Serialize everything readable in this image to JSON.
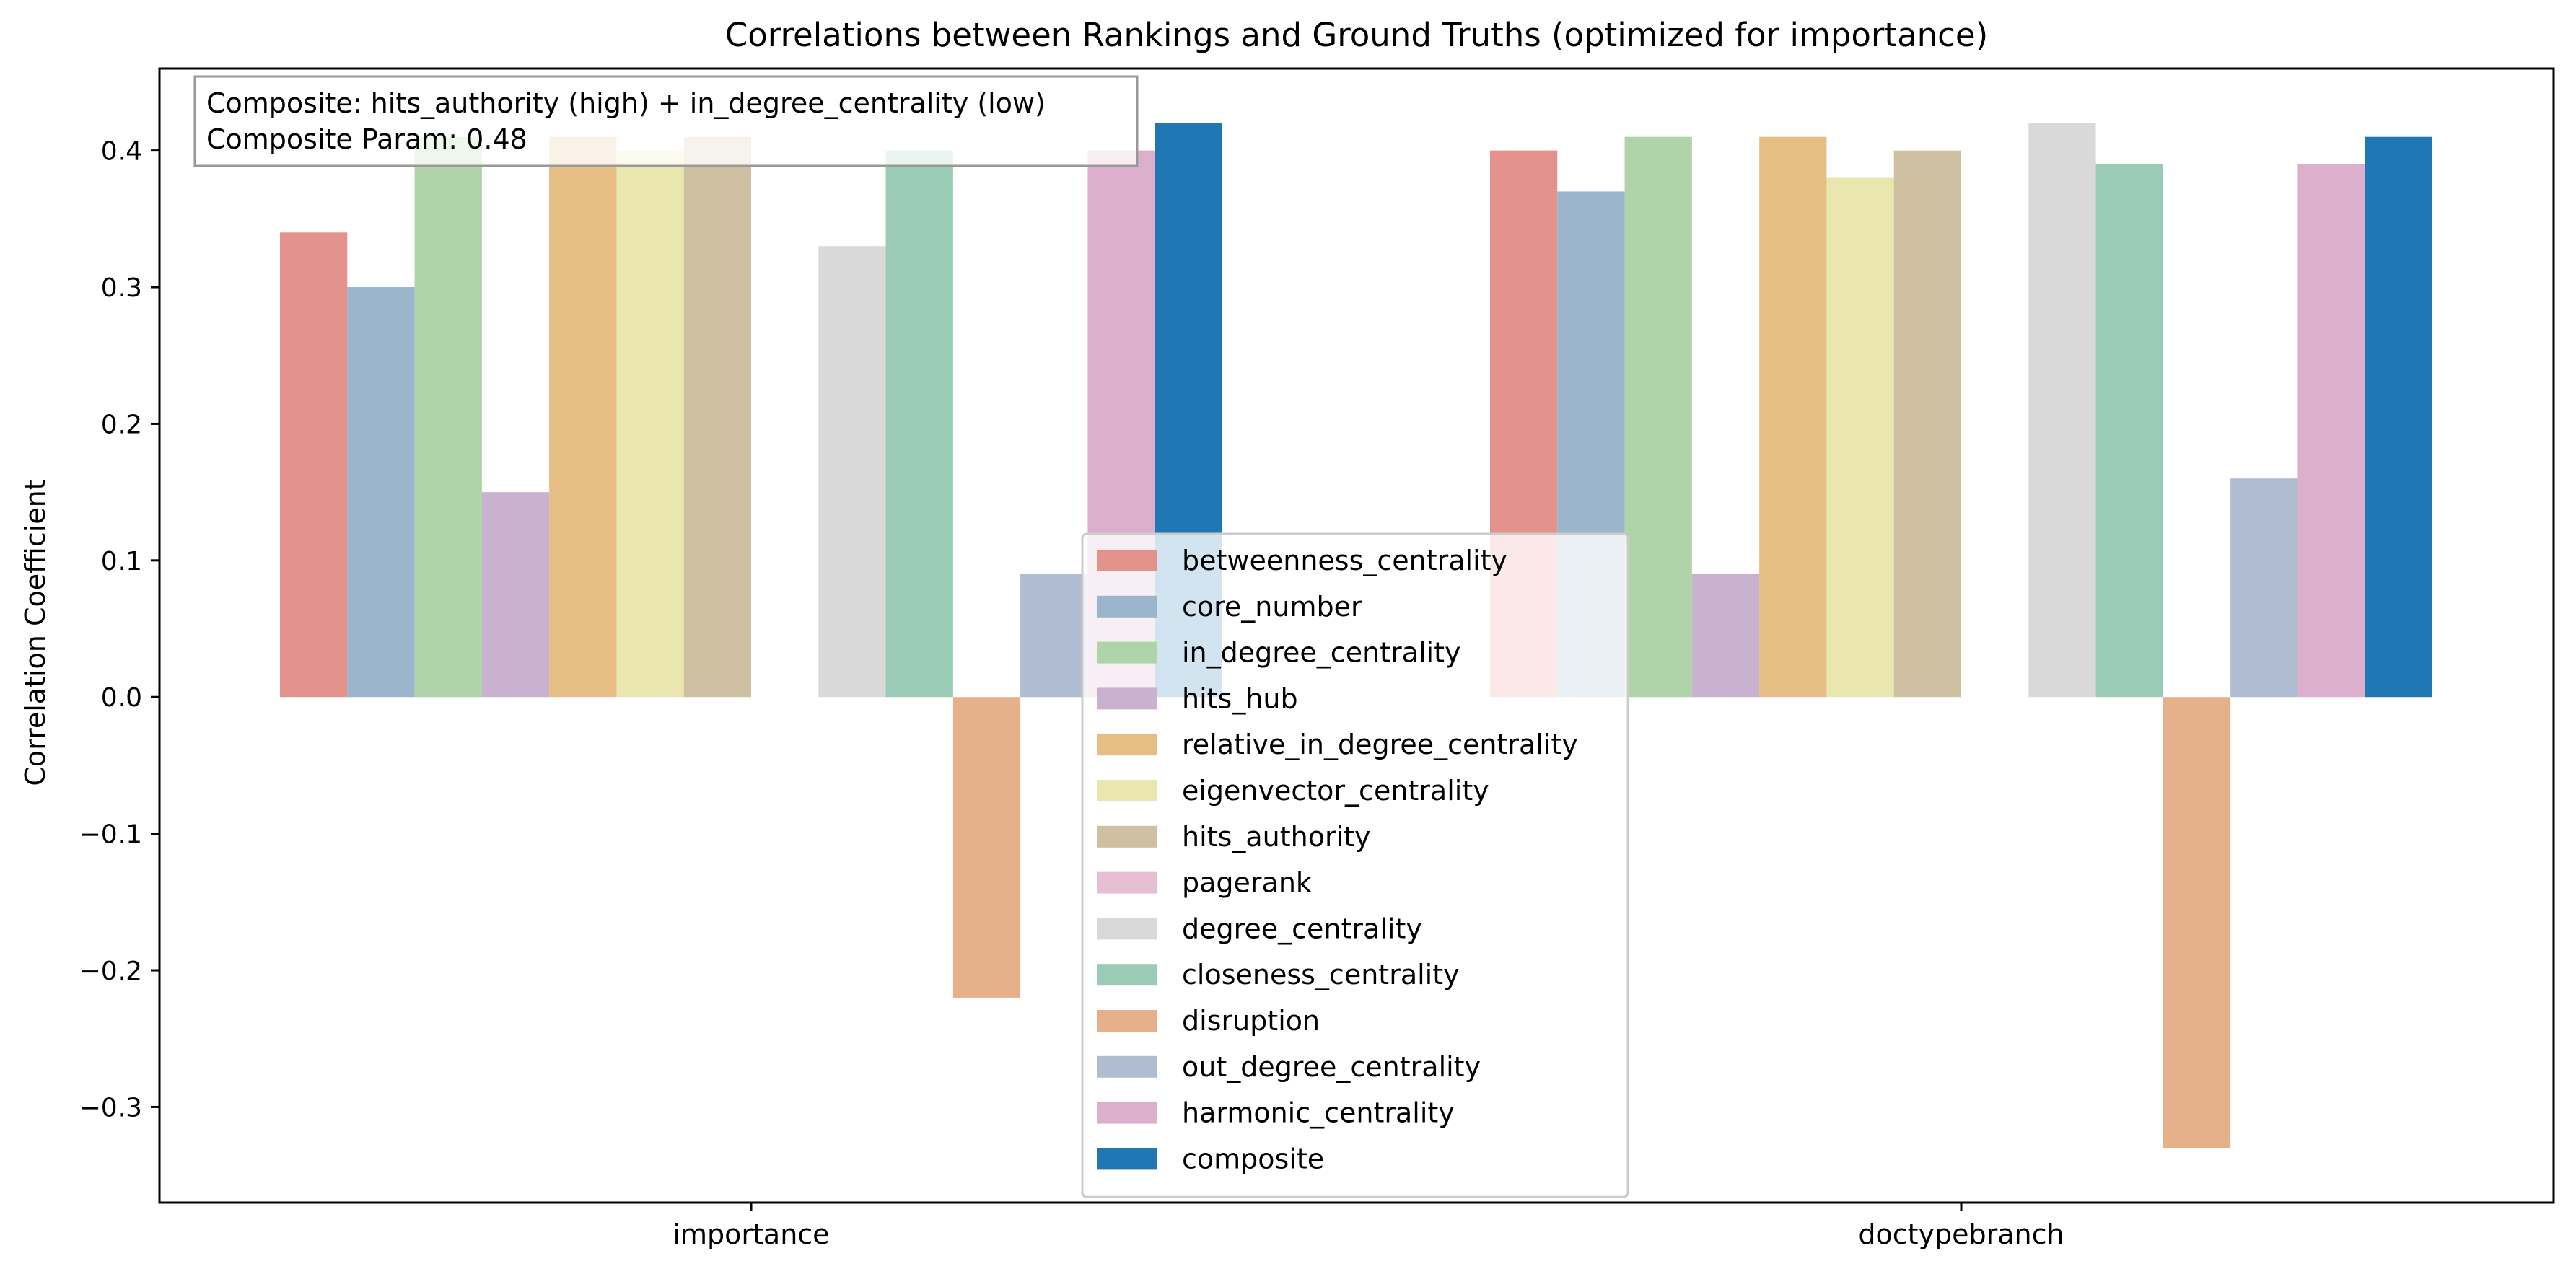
{
  "chart_data": {
    "type": "bar",
    "title": "Correlations between Rankings and Ground Truths (optimized for importance)",
    "xlabel": "",
    "ylabel": "Correlation Coefficient",
    "categories": [
      "importance",
      "doctypebranch"
    ],
    "ylim": [
      -0.37,
      0.46
    ],
    "yticks": [
      -0.3,
      -0.2,
      -0.1,
      0.0,
      0.1,
      0.2,
      0.3,
      0.4
    ],
    "ytick_labels": [
      "−0.3",
      "−0.2",
      "−0.1",
      "0.0",
      "0.1",
      "0.2",
      "0.3",
      "0.4"
    ],
    "grid": false,
    "legend_position": "center",
    "series": [
      {
        "name": "betweenness_centrality",
        "color": "#e3938c",
        "values": [
          0.34,
          0.4
        ]
      },
      {
        "name": "core_number",
        "color": "#9ab5cc",
        "values": [
          0.3,
          0.37
        ]
      },
      {
        "name": "in_degree_centrality",
        "color": "#b1d3a9",
        "values": [
          0.41,
          0.41
        ]
      },
      {
        "name": "hits_hub",
        "color": "#c8b2cf",
        "values": [
          0.15,
          0.09
        ]
      },
      {
        "name": "relative_in_degree_centrality",
        "color": "#e7bd86",
        "values": [
          0.41,
          0.41
        ]
      },
      {
        "name": "eigenvector_centrality",
        "color": "#e9e6ae",
        "values": [
          0.4,
          0.38
        ]
      },
      {
        "name": "hits_authority",
        "color": "#cfc0a2",
        "values": [
          0.41,
          0.4
        ]
      },
      {
        "name": "pagerank",
        "color": "#e6bfd5",
        "values": [
          null,
          null
        ]
      },
      {
        "name": "degree_centrality",
        "color": "#d9d9d9",
        "values": [
          0.33,
          0.42
        ]
      },
      {
        "name": "closeness_centrality",
        "color": "#9acbb6",
        "values": [
          0.4,
          0.39
        ]
      },
      {
        "name": "disruption",
        "color": "#e5b08a",
        "values": [
          -0.22,
          -0.33
        ]
      },
      {
        "name": "out_degree_centrality",
        "color": "#b0bcd2",
        "values": [
          0.09,
          0.16
        ]
      },
      {
        "name": "harmonic_centrality",
        "color": "#dcafcc",
        "values": [
          0.4,
          0.39
        ]
      },
      {
        "name": "composite",
        "color": "#1f77b4",
        "values": [
          0.42,
          0.41
        ]
      }
    ],
    "annotation": {
      "line1": "Composite: hits_authority (high) + in_degree_centrality (low)",
      "line2": "Composite Param: 0.48"
    }
  }
}
